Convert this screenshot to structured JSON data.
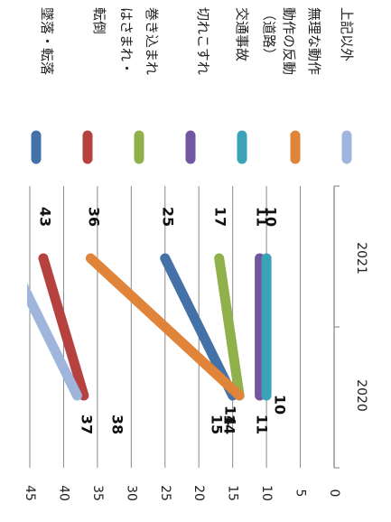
{
  "chart_data": {
    "type": "line",
    "orientation": "rotated-90-clockwise",
    "categories": [
      "2020",
      "2021"
    ],
    "ylim": [
      0,
      45
    ],
    "y_ticks": [
      "0",
      "5",
      "10",
      "15",
      "20",
      "25",
      "30",
      "35",
      "40",
      "45"
    ],
    "grid": true,
    "legend_position": "top",
    "series": [
      {
        "name": "墜落・転落",
        "values": [
          15,
          25
        ],
        "labels": [
          "15",
          "25"
        ],
        "color": "#4472a8"
      },
      {
        "name": "転倒",
        "values": [
          37,
          43
        ],
        "labels": [
          "37",
          "43"
        ],
        "color": "#b5423f"
      },
      {
        "name": "はさまれ・巻き込まれ",
        "name_lines": [
          "はさまれ・",
          "巻き込まれ"
        ],
        "values": [
          14,
          17
        ],
        "labels": [
          "14",
          "17"
        ],
        "color": "#8fb04a"
      },
      {
        "name": "切れこすれ",
        "values": [
          11,
          11
        ],
        "labels": [
          "11",
          "11"
        ],
        "color": "#7356a0"
      },
      {
        "name": "交通事故（道路）",
        "name_lines": [
          "交通事故",
          "（道路）"
        ],
        "values": [
          10,
          10
        ],
        "labels": [
          "10",
          "10"
        ],
        "color": "#3aa3b8"
      },
      {
        "name": "動作の反動無理な動作",
        "name_lines": [
          "動作の反動",
          "無理な動作"
        ],
        "values": [
          14,
          36
        ],
        "labels": [
          "14",
          "36"
        ],
        "color": "#e0843a"
      },
      {
        "name": "上記以外",
        "values": [
          38,
          48
        ],
        "labels": [
          "38",
          ""
        ],
        "color": "#9fb5db"
      }
    ]
  }
}
